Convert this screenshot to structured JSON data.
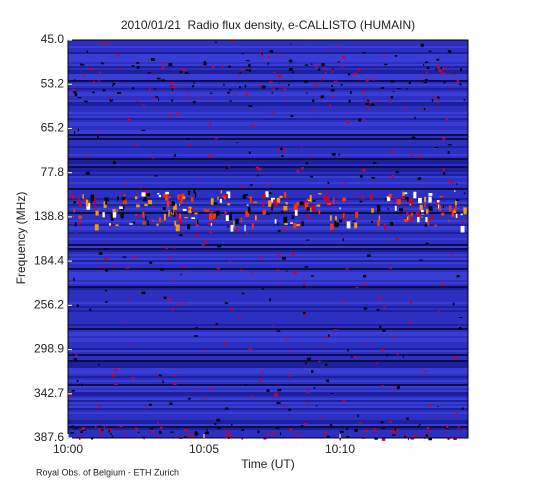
{
  "chart_data": {
    "type": "spectrogram",
    "title": "2010/01/21  Radio flux density, e-CALLISTO (HUMAIN)",
    "y_label": "Frequency (MHz)",
    "x_label": "Time (UT)",
    "y_categories": [
      "45.0",
      "53.2",
      "65.2",
      "77.8",
      "138.8",
      "184.4",
      "256.2",
      "298.9",
      "342.7",
      "387.6"
    ],
    "xticks": [
      "10:00",
      "10:05",
      "10:10"
    ],
    "footer": "Royal Obs. of Belgium - ETH Zurich"
  }
}
